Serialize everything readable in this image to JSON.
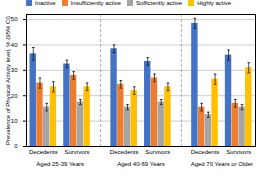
{
  "chart_data": {
    "type": "bar",
    "ylabel": "Prevalence of Physical Activity level, % (95% CI)",
    "categories": [
      "Decedents",
      "Survivors",
      "Decedents",
      "Survivors",
      "Decedents",
      "Survivors"
    ],
    "annotations": [
      "Aged 25-39 Years",
      "Aged 40-69 Years",
      "Aged 70 Years or Older"
    ],
    "series": [
      {
        "name": "Inactive",
        "color": "#4472C4",
        "values": [
          36.5,
          32.5,
          38.5,
          33.5,
          48.5,
          36.0
        ],
        "errors": [
          2.5,
          1.5,
          1.5,
          1.5,
          2.0,
          2.0
        ]
      },
      {
        "name": "Insufficiently active",
        "color": "#ED7D31",
        "values": [
          25.0,
          28.0,
          24.5,
          27.0,
          15.5,
          17.0
        ],
        "errors": [
          2.0,
          1.5,
          1.5,
          1.5,
          1.5,
          1.5
        ]
      },
      {
        "name": "Sufficiently active",
        "color": "#A5A5A5",
        "values": [
          15.5,
          17.5,
          15.5,
          17.5,
          12.5,
          15.5
        ],
        "errors": [
          1.5,
          1.0,
          1.0,
          1.0,
          1.0,
          1.0
        ]
      },
      {
        "name": "Highly active",
        "color": "#FFC000",
        "values": [
          23.5,
          23.5,
          22.0,
          23.5,
          26.5,
          31.0
        ],
        "errors": [
          2.0,
          1.5,
          1.5,
          1.5,
          2.0,
          2.0
        ]
      }
    ],
    "ylim": [
      0,
      52
    ],
    "yticks": [
      0,
      10,
      20,
      30,
      40,
      50
    ],
    "grid": true,
    "legend": "top"
  }
}
